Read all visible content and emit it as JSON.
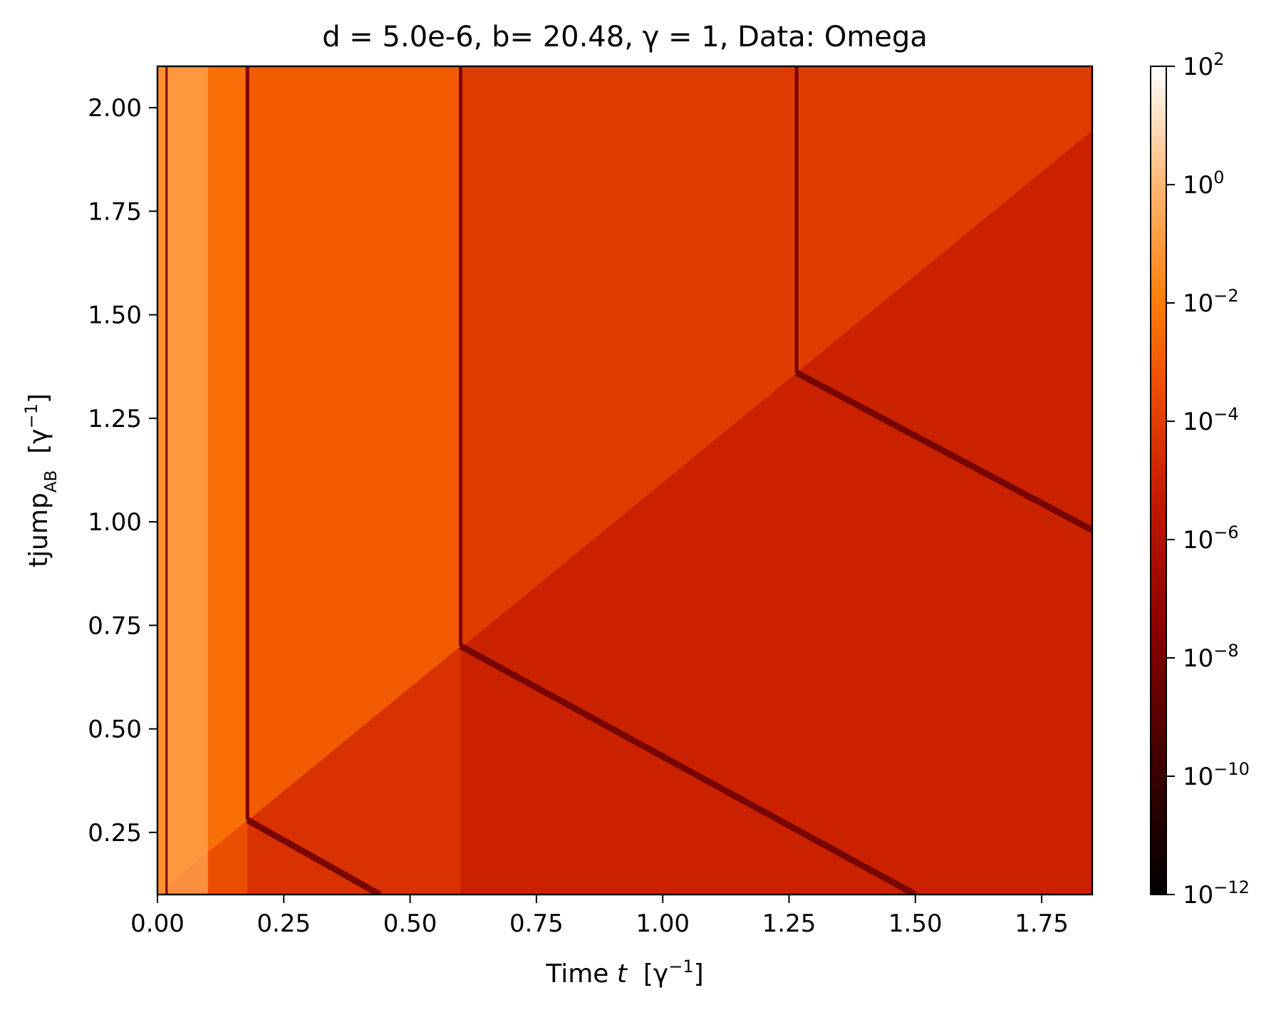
{
  "chart_data": {
    "type": "heatmap",
    "title": "d = 5.0e-6, b= 20.48,  γ = 1, Data: Omega",
    "xlabel": {
      "main": "Time ",
      "var": "t",
      "unit_open": "[γ",
      "exp": "−1",
      "unit_close": "]"
    },
    "ylabel": {
      "main": "tjump",
      "sub": "AB",
      "unit_open": "[γ",
      "exp": "−1",
      "unit_close": "]"
    },
    "xlim": [
      0.0,
      1.85
    ],
    "ylim": [
      0.1,
      2.1
    ],
    "x_ticks": [
      0.0,
      0.25,
      0.5,
      0.75,
      1.0,
      1.25,
      1.5,
      1.75
    ],
    "x_tick_labels": [
      "0.00",
      "0.25",
      "0.50",
      "0.75",
      "1.00",
      "1.25",
      "1.50",
      "1.75"
    ],
    "y_ticks": [
      0.25,
      0.5,
      0.75,
      1.0,
      1.25,
      1.5,
      1.75,
      2.0
    ],
    "y_tick_labels": [
      "0.25",
      "0.50",
      "0.75",
      "1.00",
      "1.25",
      "1.50",
      "1.75",
      "2.00"
    ],
    "colorbar": {
      "scale": "log",
      "range": [
        1e-12,
        100
      ],
      "colormap": "gist_heat",
      "ticks": [
        {
          "value": 100,
          "base": "10",
          "exp": "2"
        },
        {
          "value": 1,
          "base": "10",
          "exp": "0"
        },
        {
          "value": 0.01,
          "base": "10",
          "exp": "−2"
        },
        {
          "value": 0.0001,
          "base": "10",
          "exp": "−4"
        },
        {
          "value": 1e-06,
          "base": "10",
          "exp": "−6"
        },
        {
          "value": 1e-08,
          "base": "10",
          "exp": "−8"
        },
        {
          "value": 1e-10,
          "base": "10",
          "exp": "−10"
        },
        {
          "value": 1e-12,
          "base": "10",
          "exp": "−12"
        }
      ]
    },
    "features": {
      "vertical_dark_lines_t": [
        0.018,
        0.178,
        0.6,
        1.265
      ],
      "kink_points": [
        [
          0.178,
          0.28
        ],
        [
          0.6,
          0.7
        ],
        [
          1.265,
          1.36
        ]
      ],
      "diagonal_boundary_slope": 1.0,
      "descending_dark_lines": [
        {
          "from": [
            0.178,
            0.28
          ],
          "to": [
            0.44,
            0.1
          ]
        },
        {
          "from": [
            0.6,
            0.7
          ],
          "to": [
            1.5,
            0.1
          ]
        },
        {
          "from": [
            1.265,
            1.36
          ],
          "to": [
            1.85,
            0.98
          ]
        }
      ],
      "log10_levels_below_diagonal": [
        -2.6,
        -3.4,
        -4.4,
        -5.0
      ],
      "log10_levels_above_diagonal": [
        -1.3,
        -2.4,
        -3.0,
        -4.0
      ]
    }
  }
}
